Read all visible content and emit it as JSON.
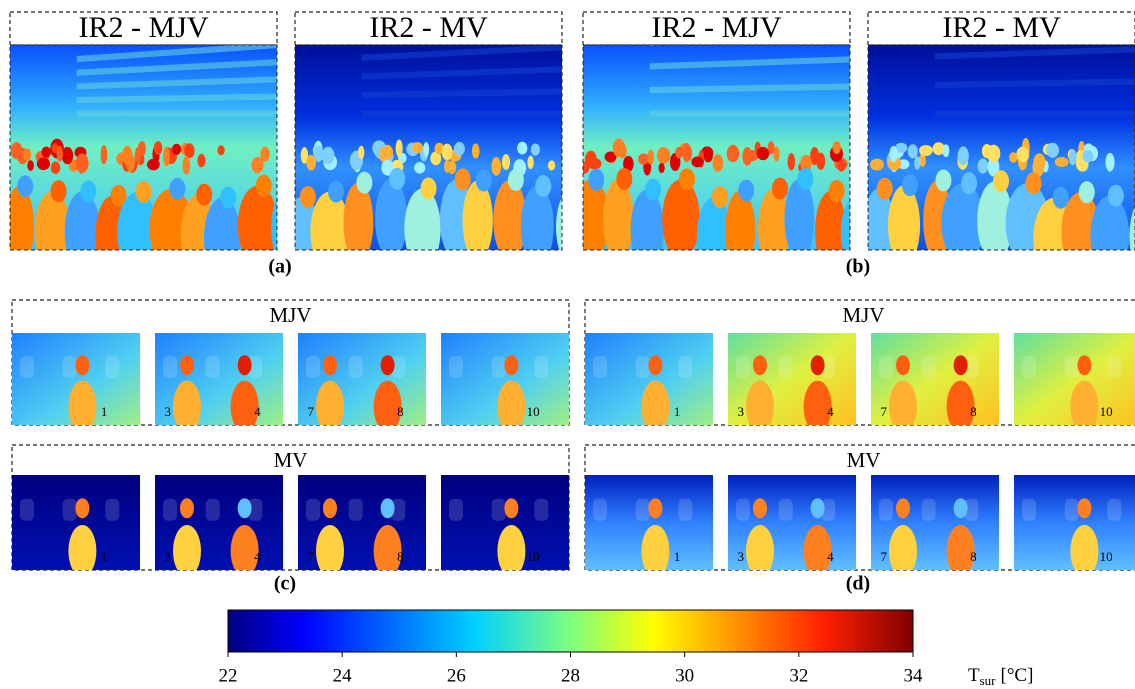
{
  "top_panels": [
    {
      "label": "(a)",
      "images": [
        {
          "title": "IR2 - MJV"
        },
        {
          "title": "IR2 - MV"
        }
      ]
    },
    {
      "label": "(b)",
      "images": [
        {
          "title": "IR2 - MJV"
        },
        {
          "title": "IR2 - MV"
        }
      ]
    }
  ],
  "bottom_panels": [
    {
      "label": "(c)",
      "rows": [
        {
          "title": "MJV",
          "numbers": [
            [
              "1"
            ],
            [
              "3",
              "4"
            ],
            [
              "7",
              "8"
            ],
            [
              "10"
            ]
          ]
        },
        {
          "title": "MV",
          "numbers": [
            [
              "1"
            ],
            [
              "3",
              "4"
            ],
            [
              "7",
              "8"
            ],
            [
              "10"
            ]
          ]
        }
      ]
    },
    {
      "label": "(d)",
      "rows": [
        {
          "title": "MJV",
          "numbers": [
            [
              "1"
            ],
            [
              "3",
              "4"
            ],
            [
              "7",
              "8"
            ],
            [
              "10"
            ]
          ]
        },
        {
          "title": "MV",
          "numbers": [
            [
              "1"
            ],
            [
              "3",
              "4"
            ],
            [
              "7",
              "8"
            ],
            [
              "10"
            ]
          ]
        }
      ]
    }
  ],
  "colorbar": {
    "lim": [
      22,
      34
    ],
    "ticks": [
      22,
      24,
      26,
      28,
      30,
      32,
      34
    ],
    "label": "T",
    "label_sub": "sur",
    "label_unit": "[°C]"
  }
}
